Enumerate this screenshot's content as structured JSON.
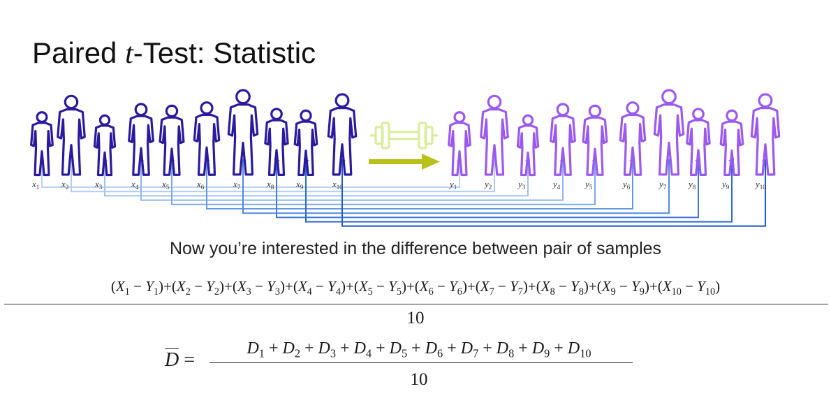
{
  "title": {
    "pre": "Paired ",
    "var": "t",
    "post": "-Test: Statistic"
  },
  "caption": "Now you’re interested in the difference between pair of samples",
  "labels": {
    "x": [
      "x1",
      "x2",
      "x3",
      "x4",
      "x5",
      "x6",
      "x7",
      "x8",
      "x9",
      "x10"
    ],
    "y": [
      "y1",
      "y2",
      "y3",
      "y4",
      "y5",
      "y6",
      "y7",
      "y8",
      "y9",
      "y10"
    ]
  },
  "formula_sum": {
    "terms": [
      "1",
      "2",
      "3",
      "4",
      "5",
      "6",
      "7",
      "8",
      "9",
      "10"
    ],
    "denominator": "10"
  },
  "formula_mean": {
    "lhs": "D",
    "equals": "=",
    "terms": [
      "1",
      "2",
      "3",
      "4",
      "5",
      "6",
      "7",
      "8",
      "9",
      "10"
    ],
    "denominator": "10"
  },
  "colors": {
    "group_x": "#2a1a9e",
    "group_y": "#9b59f0",
    "arrow": "#b7c11a",
    "dumbbell": "#d8ec9a",
    "links": [
      "#bcd4f4",
      "#b2cdf2",
      "#a2c2ef",
      "#8fb6ec",
      "#7aa8e8",
      "#6598e2",
      "#5088dc",
      "#3d78d6",
      "#2c6ad2",
      "#1f5cc8"
    ]
  },
  "icons": [
    "person-silhouette-icon",
    "dumbbell-icon",
    "right-arrow-icon"
  ]
}
